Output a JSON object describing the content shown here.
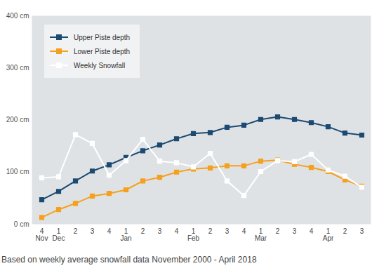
{
  "chart_data": {
    "type": "line",
    "caption": "Based on weekly average snowfall data November 2000 - April 2018",
    "categories": [
      "4\nNov",
      "1\nDec",
      "2",
      "3",
      "4",
      "1\nJan",
      "2",
      "3",
      "4",
      "1\nFeb",
      "2",
      "3",
      "4",
      "1\nMar",
      "2",
      "3",
      "4",
      "1\nApr",
      "2",
      "3"
    ],
    "series": [
      {
        "name": "Upper Piste depth",
        "color": "#1b4a72",
        "marker": "square",
        "values": [
          47,
          63,
          83,
          102,
          114,
          128,
          141,
          152,
          164,
          174,
          176,
          186,
          190,
          201,
          206,
          201,
          195,
          187,
          175,
          171
        ]
      },
      {
        "name": "Lower Piste depth",
        "color": "#f5a01e",
        "marker": "square",
        "values": [
          13,
          28,
          40,
          54,
          59,
          66,
          83,
          90,
          100,
          106,
          108,
          112,
          112,
          121,
          123,
          115,
          109,
          101,
          85,
          73
        ]
      },
      {
        "name": "Weekly Snowfall",
        "color": "#ffffff",
        "marker": "square",
        "values": [
          89,
          91,
          172,
          155,
          94,
          122,
          163,
          121,
          118,
          110,
          136,
          83,
          55,
          101,
          122,
          120,
          134,
          104,
          92,
          71
        ]
      }
    ],
    "ylim": [
      0,
      400
    ],
    "yticks": [
      {
        "value": 0,
        "label": "0 cm"
      },
      {
        "value": 100,
        "label": "100 cm"
      },
      {
        "value": 200,
        "label": "200 cm"
      },
      {
        "value": 300,
        "label": "300 cm"
      },
      {
        "value": 400,
        "label": "400 cm"
      }
    ],
    "grid": false,
    "legend": "top-left"
  }
}
